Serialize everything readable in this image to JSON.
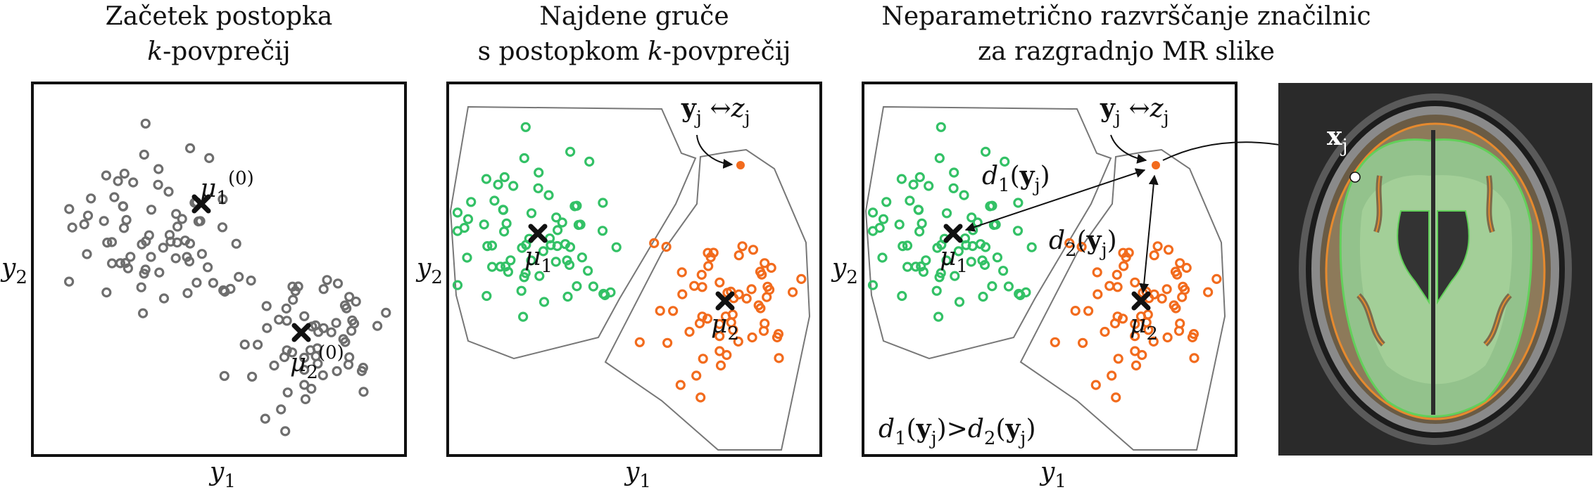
{
  "titles": {
    "p1_line1": "Začetek postopka",
    "p1_line2_k": "k",
    "p1_line2_rest": "-povprečij",
    "p2_line1": "Najdene gruče",
    "p2_line2_a": "s postopkom ",
    "p2_line2_k": "k",
    "p2_line2_rest": "-povprečij",
    "p3_line1": "Neparametrično razvrščanje značilnic",
    "p3_line2": "za razgradnjo MR slike"
  },
  "math": {
    "y": "y",
    "one": "1",
    "two": "2",
    "mu": "μ",
    "sup0": "(0)",
    "yj_bold": "y",
    "j": "j",
    "arrow": "↔",
    "z": "z",
    "d": "d",
    "xj_bold": "x",
    "gt": ">",
    "lp": "(",
    "rp": ")"
  },
  "colors": {
    "gray": "#6e6e6e",
    "green": "#33c166",
    "orange": "#f26b1d",
    "black": "#111111"
  }
}
